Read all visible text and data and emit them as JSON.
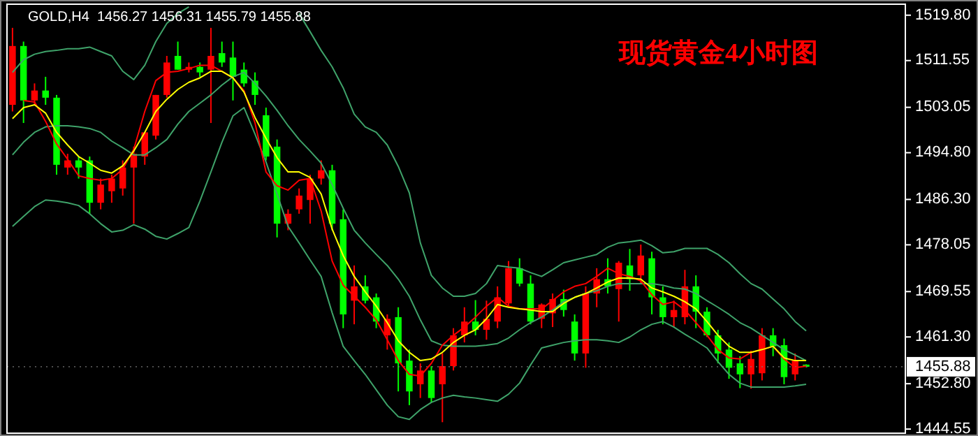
{
  "chart_data": {
    "type": "candlestick",
    "title": "现货黄金4小时图",
    "annotations": [
      "GOLD,H4  1456.27 1456.31 1455.79 1455.88"
    ],
    "categories": [
      null,
      null,
      null,
      null,
      null,
      null,
      null,
      null,
      null,
      null,
      null,
      null,
      null,
      null,
      null,
      null,
      null,
      null,
      null,
      null,
      null,
      null,
      null,
      null,
      null,
      null,
      null,
      null,
      null,
      null,
      null,
      null,
      null,
      null,
      null,
      null,
      null,
      null,
      null,
      null,
      null,
      null,
      null,
      null,
      null,
      null,
      null,
      null,
      null,
      null,
      null,
      null,
      null,
      null,
      null,
      null,
      null,
      null,
      null,
      null,
      null,
      null,
      null,
      null,
      null,
      null,
      null,
      null,
      null,
      null,
      null,
      null,
      null
    ],
    "ohlc": [
      [
        1503.5,
        1517.5,
        1502.3,
        1514.2
      ],
      [
        1514.2,
        1515.0,
        1500.2,
        1504.3
      ],
      [
        1504.3,
        1507.4,
        1503.5,
        1506.1
      ],
      [
        1506.1,
        1508.6,
        1503.5,
        1504.8
      ],
      [
        1504.8,
        1505.3,
        1490.8,
        1492.6
      ],
      [
        1492.1,
        1494.6,
        1490.8,
        1493.4
      ],
      [
        1493.4,
        1494.1,
        1490.1,
        1492.1
      ],
      [
        1493.4,
        1494.1,
        1483.7,
        1485.7
      ],
      [
        1485.7,
        1490.1,
        1484.5,
        1489.0
      ],
      [
        1487.8,
        1490.8,
        1485.7,
        1490.1
      ],
      [
        1488.3,
        1493.4,
        1487.0,
        1492.1
      ],
      [
        1492.1,
        1495.9,
        1481.9,
        1494.6
      ],
      [
        1494.1,
        1498.5,
        1492.6,
        1498.5
      ],
      [
        1497.9,
        1505.3,
        1497.2,
        1505.3
      ],
      [
        1505.3,
        1512.4,
        1504.8,
        1511.2
      ],
      [
        1512.4,
        1515.0,
        1509.9,
        1509.9
      ],
      [
        1509.9,
        1511.2,
        1509.4,
        1510.4
      ],
      [
        1510.4,
        1511.2,
        1508.6,
        1509.4
      ],
      [
        1509.9,
        1517.5,
        1500.2,
        1512.4
      ],
      [
        1512.9,
        1515.0,
        1510.4,
        1511.2
      ],
      [
        1512.1,
        1515.0,
        1504.3,
        1508.6
      ],
      [
        1509.9,
        1511.2,
        1506.8,
        1507.4
      ],
      [
        1507.9,
        1509.4,
        1503.5,
        1505.3
      ],
      [
        1501.6,
        1503.0,
        1493.4,
        1494.1
      ],
      [
        1495.9,
        1497.2,
        1479.4,
        1481.9
      ],
      [
        1481.9,
        1484.5,
        1480.7,
        1483.7
      ],
      [
        1484.5,
        1488.3,
        1483.7,
        1487.0
      ],
      [
        1486.2,
        1490.8,
        1481.9,
        1490.1
      ],
      [
        1490.1,
        1493.4,
        1489.0,
        1491.6
      ],
      [
        1491.6,
        1492.6,
        1480.7,
        1481.9
      ],
      [
        1482.7,
        1484.5,
        1462.9,
        1465.4
      ],
      [
        1467.9,
        1474.3,
        1463.6,
        1470.5
      ],
      [
        1470.5,
        1472.5,
        1467.4,
        1467.9
      ],
      [
        1468.5,
        1469.2,
        1462.9,
        1464.1
      ],
      [
        1461.6,
        1465.4,
        1459.0,
        1464.6
      ],
      [
        1464.9,
        1466.7,
        1451.4,
        1456.5
      ],
      [
        1457.0,
        1459.0,
        1448.9,
        1451.4
      ],
      [
        1452.7,
        1456.5,
        1450.2,
        1455.2
      ],
      [
        1455.2,
        1456.0,
        1449.4,
        1450.2
      ],
      [
        1452.7,
        1458.3,
        1445.8,
        1456.0
      ],
      [
        1456.0,
        1462.9,
        1455.2,
        1461.6
      ],
      [
        1461.6,
        1466.7,
        1460.3,
        1464.1
      ],
      [
        1464.1,
        1468.0,
        1461.6,
        1462.6
      ],
      [
        1462.6,
        1467.9,
        1460.8,
        1464.6
      ],
      [
        1464.1,
        1470.5,
        1462.9,
        1468.5
      ],
      [
        1467.4,
        1475.1,
        1466.7,
        1473.8
      ],
      [
        1473.8,
        1475.6,
        1470.5,
        1471.0
      ],
      [
        1471.0,
        1472.5,
        1463.6,
        1464.1
      ],
      [
        1464.6,
        1467.4,
        1462.9,
        1467.2
      ],
      [
        1465.6,
        1469.2,
        1463.1,
        1468.2
      ],
      [
        1468.2,
        1469.9,
        1465.0,
        1466.2
      ],
      [
        1464.1,
        1465.4,
        1457.0,
        1458.3
      ],
      [
        1458.3,
        1470.5,
        1455.7,
        1469.2
      ],
      [
        1469.2,
        1473.8,
        1466.7,
        1471.8
      ],
      [
        1471.8,
        1475.6,
        1469.2,
        1470.5
      ],
      [
        1470.0,
        1475.1,
        1464.1,
        1474.8
      ],
      [
        1474.3,
        1477.3,
        1469.7,
        1471.8
      ],
      [
        1472.5,
        1478.1,
        1471.0,
        1476.1
      ],
      [
        1475.6,
        1476.8,
        1465.4,
        1468.5
      ],
      [
        1468.5,
        1470.5,
        1463.6,
        1464.9
      ],
      [
        1464.9,
        1467.9,
        1463.1,
        1466.2
      ],
      [
        1464.9,
        1473.5,
        1463.6,
        1470.5
      ],
      [
        1470.5,
        1472.5,
        1462.9,
        1465.9
      ],
      [
        1465.9,
        1466.7,
        1461.3,
        1461.6
      ],
      [
        1461.6,
        1462.6,
        1456.5,
        1458.3
      ],
      [
        1459.0,
        1460.3,
        1453.7,
        1455.7
      ],
      [
        1456.5,
        1457.8,
        1452.0,
        1454.5
      ],
      [
        1454.5,
        1458.8,
        1451.9,
        1457.3
      ],
      [
        1454.7,
        1462.9,
        1453.4,
        1461.6
      ],
      [
        1461.6,
        1462.9,
        1457.8,
        1459.6
      ],
      [
        1459.8,
        1461.0,
        1452.7,
        1454.0
      ],
      [
        1454.5,
        1458.3,
        1453.4,
        1457.0
      ],
      [
        1456.27,
        1456.31,
        1455.79,
        1455.88
      ]
    ],
    "series": [
      {
        "type": "line",
        "color": "#3fa36a",
        "values": [
          1509.4,
          1511.7,
          1512.7,
          1513.2,
          1513.4,
          1513.7,
          1513.7,
          1514.0,
          1513.2,
          1512.4,
          1509.6,
          1508.1,
          1510.7,
          1515.0,
          1518.3,
          1520.1,
          1521.3,
          null,
          null,
          null,
          null,
          null,
          null,
          null,
          null,
          null,
          1520.1,
          1516.8,
          1513.4,
          1510.4,
          1506.6,
          1501.8,
          1499.5,
          1498.5,
          1496.2,
          1492.3,
          1487.5,
          1478.4,
          1472.5,
          1470.2,
          1468.7,
          1468.7,
          1469.2,
          1471.0,
          1474.3,
          1474.0,
          1473.8,
          1473.0,
          1472.3,
          1473.5,
          1474.8,
          1475.3,
          1475.8,
          1476.3,
          1477.6,
          1478.4,
          1478.6,
          1478.9,
          1477.9,
          1476.6,
          1476.8,
          1477.4,
          1477.4,
          1477.4,
          1476.3,
          1474.8,
          1472.8,
          1471.0,
          1470.0,
          1468.2,
          1466.4,
          1464.1,
          1462.4
        ]
      },
      {
        "type": "line",
        "color": "#3fa36a",
        "values": [
          1494.4,
          1496.7,
          1498.5,
          1499.5,
          1499.7,
          1499.7,
          1499.5,
          1499.2,
          1498.5,
          1496.9,
          1495.7,
          1494.4,
          1494.4,
          1495.7,
          1497.2,
          1500.0,
          1502.3,
          1503.8,
          1505.3,
          1507.1,
          1508.6,
          1509.4,
          1507.4,
          1505.1,
          1502.5,
          1499.7,
          1497.2,
          1495.1,
          1492.9,
          1489.0,
          1484.7,
          1480.7,
          1478.4,
          1476.3,
          1474.3,
          1471.8,
          1468.7,
          1464.4,
          1460.6,
          1459.8,
          1459.6,
          1459.6,
          1459.6,
          1459.8,
          1460.1,
          1461.1,
          1462.6,
          1463.9,
          1464.9,
          1466.2,
          1467.7,
          1468.5,
          1469.2,
          1469.7,
          1470.5,
          1471.0,
          1471.0,
          1471.0,
          1471.0,
          1470.7,
          1470.2,
          1470.0,
          1469.2,
          1467.9,
          1466.7,
          1465.4,
          1463.9,
          1462.9,
          1461.6,
          1460.3,
          1459.0,
          1458.0,
          1457.0
        ]
      },
      {
        "type": "line",
        "color": "#3fa36a",
        "values": [
          1481.4,
          1483.2,
          1485.0,
          1486.2,
          1486.0,
          1485.7,
          1485.2,
          1483.7,
          1481.9,
          1480.4,
          1480.7,
          1481.7,
          1480.9,
          1479.6,
          1479.1,
          1480.1,
          1481.2,
          1486.0,
          1491.3,
          1496.7,
          1501.5,
          1503.0,
          1498.2,
          1493.1,
          1487.3,
          1481.4,
          1478.4,
          1475.3,
          1472.3,
          1465.7,
          1459.6,
          1457.0,
          1454.5,
          1451.7,
          1448.9,
          1446.8,
          1446.3,
          1448.1,
          1449.4,
          1450.2,
          1450.7,
          1450.4,
          1450.2,
          1449.9,
          1449.6,
          1450.9,
          1452.9,
          1456.2,
          1459.3,
          1459.8,
          1460.3,
          1460.6,
          1460.8,
          1460.8,
          1460.6,
          1460.3,
          1461.3,
          1462.6,
          1463.6,
          1464.1,
          1463.1,
          1461.8,
          1460.6,
          1459.3,
          1456.8,
          1454.5,
          1452.9,
          1452.2,
          1452.2,
          1452.2,
          1452.2,
          1452.4,
          1452.7
        ]
      },
      {
        "type": "line",
        "color": "#ff0000",
        "values": [
          null,
          1504.3,
          1504.0,
          1500.5,
          1496.4,
          1493.6,
          1490.6,
          1490.1,
          1489.8,
          1490.1,
          1491.8,
          1495.4,
          1502.3,
          1507.9,
          1509.4,
          1509.6,
          1510.1,
          1510.7,
          1510.7,
          1509.6,
          1508.4,
          1506.1,
          1500.2,
          1491.3,
          1488.8,
          1488.0,
          1489.8,
          1490.1,
          1484.2,
          1475.1,
          1470.7,
          1468.7,
          1466.7,
          1464.4,
          1460.8,
          1457.0,
          1454.5,
          1454.2,
          1456.5,
          1459.8,
          1461.6,
          1463.1,
          1464.9,
          1466.9,
          1468.5,
          1466.9,
          1466.4,
          1466.4,
          1466.4,
          1467.9,
          1469.5,
          1470.5,
          1471.0,
          1472.3,
          1473.8,
          1472.8,
          1472.3,
          1471.5,
          1469.0,
          1467.2,
          1467.7,
          1466.2,
          1463.9,
          1461.6,
          1459.0,
          1457.5,
          1457.3,
          1458.5,
          1459.0,
          1459.6,
          1457.3,
          1455.7,
          1456.0
        ]
      },
      {
        "type": "line",
        "color": "#ffff00",
        "values": [
          1501.0,
          1503.0,
          1503.5,
          1502.0,
          1498.5,
          1496.2,
          1494.1,
          1492.9,
          1491.6,
          1491.1,
          1492.4,
          1495.1,
          1498.5,
          1502.3,
          1504.5,
          1506.3,
          1507.6,
          1508.4,
          1509.6,
          1509.6,
          1508.4,
          1505.8,
          1501.2,
          1497.4,
          1493.9,
          1491.3,
          1491.3,
          1490.3,
          1487.3,
          1480.9,
          1476.1,
          1472.3,
          1469.5,
          1466.9,
          1463.9,
          1460.6,
          1458.5,
          1457.0,
          1457.3,
          1458.5,
          1460.3,
          1461.6,
          1462.6,
          1464.6,
          1467.2,
          1466.7,
          1466.4,
          1466.2,
          1465.9,
          1465.9,
          1467.4,
          1468.5,
          1469.2,
          1470.2,
          1471.3,
          1472.0,
          1472.0,
          1471.8,
          1470.2,
          1469.5,
          1468.7,
          1467.7,
          1466.4,
          1464.1,
          1461.6,
          1459.6,
          1458.5,
          1458.5,
          1459.0,
          1459.6,
          1457.5,
          1457.0,
          1457.0
        ]
      }
    ],
    "ylim": [
      1443.8,
      1521.8
    ],
    "yticks": [
      {
        "value": 1519.8,
        "label": "1519.80"
      },
      {
        "value": 1511.55,
        "label": "1511.55"
      },
      {
        "value": 1503.05,
        "label": "1503.05"
      },
      {
        "value": 1494.8,
        "label": "1494.80"
      },
      {
        "value": 1486.3,
        "label": "1486.30"
      },
      {
        "value": 1478.05,
        "label": "1478.05"
      },
      {
        "value": 1469.55,
        "label": "1469.55"
      },
      {
        "value": 1461.3,
        "label": "1461.30"
      },
      {
        "value": 1452.8,
        "label": "1452.80"
      },
      {
        "value": 1444.55,
        "label": "1444.55"
      }
    ],
    "ref_lines": [
      {
        "axis": "y",
        "value": 1455.88,
        "label": "1455.88"
      }
    ],
    "tick_labels": "y",
    "grid": false
  }
}
